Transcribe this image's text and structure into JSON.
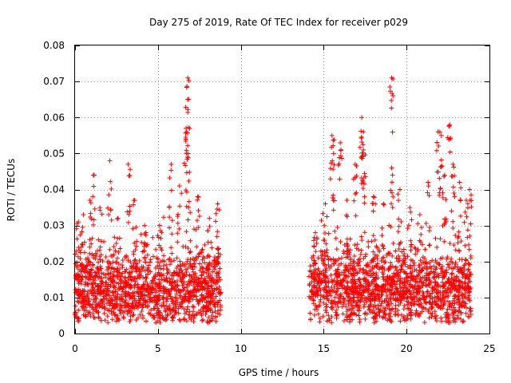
{
  "chart_data": {
    "type": "scatter",
    "title": "Day 275 of 2019, Rate Of TEC Index for receiver p029",
    "xlabel": "GPS time / hours",
    "ylabel": "ROTI / TECUs",
    "xlim": [
      0,
      25
    ],
    "ylim": [
      0,
      0.08
    ],
    "xticks": [
      0,
      5,
      10,
      15,
      20,
      25
    ],
    "xtick_labels": [
      "0",
      "5",
      "10",
      "15",
      "20",
      "25"
    ],
    "yticks": [
      0,
      0.01,
      0.02,
      0.03,
      0.04,
      0.05,
      0.06,
      0.07,
      0.08
    ],
    "ytick_labels": [
      "0",
      "0.01",
      "0.02",
      "0.03",
      "0.04",
      "0.05",
      "0.06",
      "0.07",
      "0.08"
    ],
    "grid": true,
    "marker": "+",
    "color": "#ff0000",
    "series": [
      {
        "name": "ROTI",
        "segments": [
          {
            "x_start": 0.0,
            "x_end": 8.8,
            "typical": 0.012,
            "spread": 0.009
          },
          {
            "x_start": 14.1,
            "x_end": 23.9,
            "typical": 0.012,
            "spread": 0.009
          }
        ],
        "peaks": [
          {
            "x": 0.2,
            "y": 0.031
          },
          {
            "x": 0.5,
            "y": 0.033
          },
          {
            "x": 0.9,
            "y": 0.037
          },
          {
            "x": 1.1,
            "y": 0.044
          },
          {
            "x": 1.5,
            "y": 0.035
          },
          {
            "x": 2.1,
            "y": 0.048
          },
          {
            "x": 2.6,
            "y": 0.032
          },
          {
            "x": 3.2,
            "y": 0.047
          },
          {
            "x": 3.6,
            "y": 0.037
          },
          {
            "x": 4.2,
            "y": 0.03
          },
          {
            "x": 5.1,
            "y": 0.03
          },
          {
            "x": 5.8,
            "y": 0.047
          },
          {
            "x": 6.3,
            "y": 0.041
          },
          {
            "x": 6.8,
            "y": 0.071
          },
          {
            "x": 6.8,
            "y": 0.065
          },
          {
            "x": 6.7,
            "y": 0.057
          },
          {
            "x": 6.8,
            "y": 0.049
          },
          {
            "x": 7.4,
            "y": 0.038
          },
          {
            "x": 8.1,
            "y": 0.032
          },
          {
            "x": 8.6,
            "y": 0.036
          },
          {
            "x": 14.5,
            "y": 0.028
          },
          {
            "x": 15.1,
            "y": 0.036
          },
          {
            "x": 15.5,
            "y": 0.055
          },
          {
            "x": 15.6,
            "y": 0.05
          },
          {
            "x": 16.0,
            "y": 0.053
          },
          {
            "x": 16.4,
            "y": 0.037
          },
          {
            "x": 16.9,
            "y": 0.047
          },
          {
            "x": 17.3,
            "y": 0.06
          },
          {
            "x": 17.4,
            "y": 0.056
          },
          {
            "x": 17.4,
            "y": 0.051
          },
          {
            "x": 18.0,
            "y": 0.038
          },
          {
            "x": 18.6,
            "y": 0.036
          },
          {
            "x": 19.1,
            "y": 0.071
          },
          {
            "x": 19.1,
            "y": 0.046
          },
          {
            "x": 19.6,
            "y": 0.04
          },
          {
            "x": 20.2,
            "y": 0.035
          },
          {
            "x": 20.8,
            "y": 0.033
          },
          {
            "x": 21.3,
            "y": 0.042
          },
          {
            "x": 21.9,
            "y": 0.056
          },
          {
            "x": 22.1,
            "y": 0.055
          },
          {
            "x": 22.3,
            "y": 0.044
          },
          {
            "x": 22.6,
            "y": 0.058
          },
          {
            "x": 22.8,
            "y": 0.047
          },
          {
            "x": 23.2,
            "y": 0.042
          },
          {
            "x": 23.6,
            "y": 0.037
          },
          {
            "x": 23.8,
            "y": 0.04
          }
        ]
      }
    ]
  }
}
